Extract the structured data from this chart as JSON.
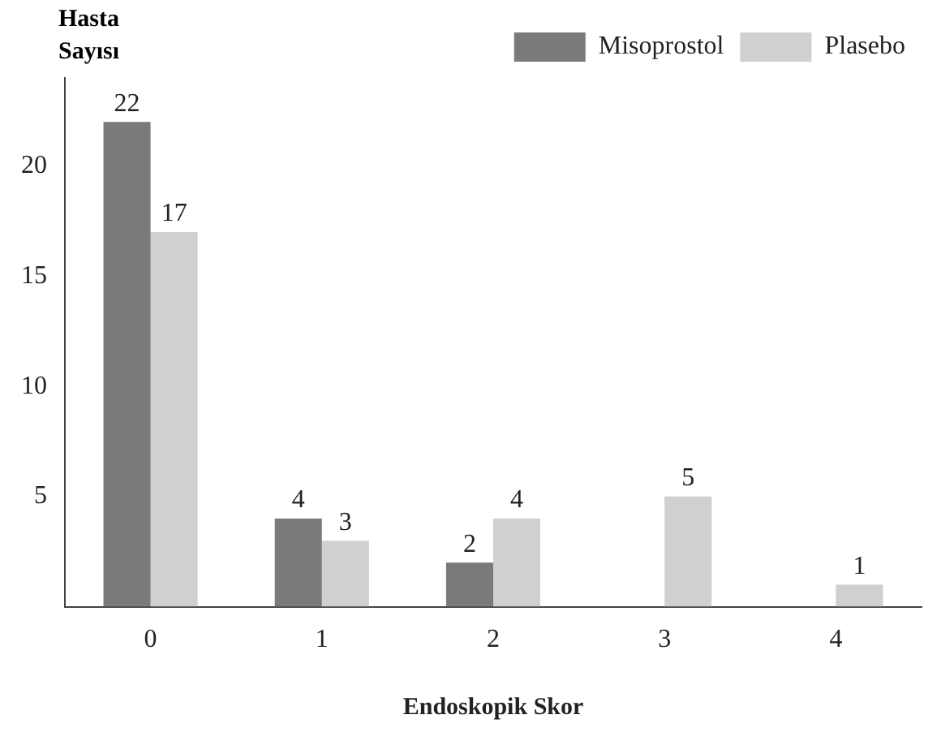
{
  "chart_data": {
    "type": "bar",
    "xlabel": "Endoskopik Skor",
    "ylabel": "Hasta Sayısı",
    "categories": [
      "0",
      "1",
      "2",
      "3",
      "4"
    ],
    "series": [
      {
        "name": "Misoprostol",
        "color": "#7a7a7a",
        "values": [
          22,
          4,
          2,
          null,
          null
        ],
        "value_labels": [
          "22",
          "4",
          "2",
          null,
          null
        ]
      },
      {
        "name": "Plasebo",
        "color": "#d0d0d0",
        "values": [
          17,
          3,
          4,
          5,
          1
        ],
        "value_labels": [
          "17",
          "3",
          "4",
          "5",
          "1"
        ]
      }
    ],
    "ylim": [
      0,
      24
    ],
    "yticks": [
      5,
      10,
      15,
      20
    ],
    "grid": false,
    "legend": "top right"
  }
}
